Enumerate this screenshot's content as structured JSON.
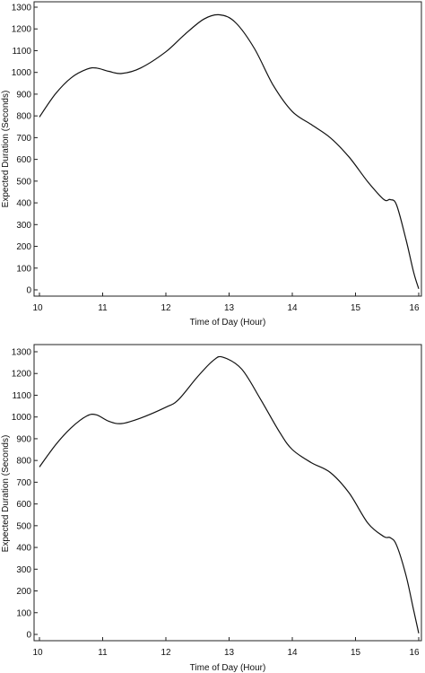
{
  "chart_data": [
    {
      "type": "line",
      "xlabel": "Time of Day (Hour)",
      "ylabel": "Expected Duration (Seconds)",
      "xlim": [
        10,
        16
      ],
      "ylim": [
        0,
        1300
      ],
      "xticks": [
        10,
        11,
        12,
        13,
        14,
        15,
        16
      ],
      "yticks": [
        0,
        100,
        200,
        300,
        400,
        500,
        600,
        700,
        800,
        900,
        1000,
        1100,
        1200,
        1300
      ],
      "grid": false,
      "series": [
        {
          "x": [
            10,
            10.25,
            10.5,
            10.75,
            10.9,
            11.1,
            11.3,
            11.6,
            12.0,
            12.3,
            12.6,
            12.85,
            13.1,
            13.4,
            13.7,
            14.0,
            14.3,
            14.6,
            14.9,
            15.2,
            15.45,
            15.55,
            15.65,
            15.8,
            15.92,
            16.0
          ],
          "y": [
            795,
            900,
            975,
            1015,
            1020,
            1005,
            995,
            1020,
            1095,
            1175,
            1245,
            1265,
            1230,
            1110,
            940,
            820,
            760,
            700,
            610,
            495,
            415,
            415,
            390,
            230,
            80,
            5
          ]
        }
      ]
    },
    {
      "type": "line",
      "xlabel": "Time of Day (Hour)",
      "ylabel": "Expected Duration (Seconds)",
      "xlim": [
        10,
        16
      ],
      "ylim": [
        0,
        1300
      ],
      "xticks": [
        10,
        11,
        12,
        13,
        14,
        15,
        16
      ],
      "yticks": [
        0,
        100,
        200,
        300,
        400,
        500,
        600,
        700,
        800,
        900,
        1000,
        1100,
        1200,
        1300
      ],
      "grid": false,
      "series": [
        {
          "x": [
            10,
            10.25,
            10.5,
            10.75,
            10.9,
            11.1,
            11.3,
            11.6,
            12.0,
            12.2,
            12.5,
            12.75,
            12.9,
            13.2,
            13.5,
            13.8,
            14.0,
            14.3,
            14.6,
            14.9,
            15.2,
            15.45,
            15.55,
            15.65,
            15.8,
            15.92,
            16.0
          ],
          "y": [
            770,
            870,
            950,
            1005,
            1010,
            980,
            970,
            995,
            1045,
            1080,
            1185,
            1260,
            1275,
            1220,
            1080,
            930,
            850,
            790,
            745,
            650,
            510,
            450,
            445,
            410,
            270,
            110,
            5
          ]
        }
      ]
    }
  ]
}
